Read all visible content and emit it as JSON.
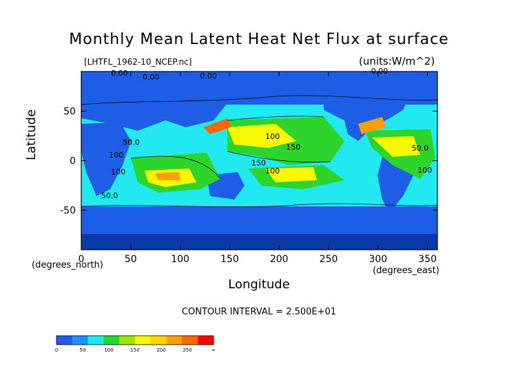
{
  "chart_data": {
    "type": "heatmap",
    "title": "Monthly Mean Latent Heat Net Flux at surface",
    "file_label": "[LHTFL_1962-10_NCEP.nc]",
    "units_label": "(units:W/m^2)",
    "xlabel": "Longitude",
    "ylabel": "Latitude",
    "x_units_label": "(degrees_east)",
    "y_units_label": "(degrees_north)",
    "xlim": [
      0,
      360
    ],
    "ylim": [
      -90,
      90
    ],
    "x_ticks": [
      0,
      50,
      100,
      150,
      200,
      250,
      300,
      350
    ],
    "y_ticks": [
      -50,
      0,
      50
    ],
    "contour_interval_text": "CONTOUR INTERVAL = 2.500E+01",
    "contour_labels": [
      {
        "text": "0.00",
        "x": 30,
        "y": 86
      },
      {
        "text": "0.00",
        "x": 62,
        "y": 82
      },
      {
        "text": "0.00",
        "x": 120,
        "y": 83
      },
      {
        "text": "0.00",
        "x": 293,
        "y": 88
      },
      {
        "text": "50.0",
        "x": 42,
        "y": 16
      },
      {
        "text": "100",
        "x": 186,
        "y": 22
      },
      {
        "text": "150",
        "x": 207,
        "y": 11
      },
      {
        "text": "100",
        "x": 28,
        "y": 3
      },
      {
        "text": "150",
        "x": 172,
        "y": -5
      },
      {
        "text": "100",
        "x": 186,
        "y": -13
      },
      {
        "text": "100",
        "x": 30,
        "y": -14
      },
      {
        "text": "50.0",
        "x": 20,
        "y": -38
      },
      {
        "text": "100",
        "x": 340,
        "y": -12
      },
      {
        "text": "50.0",
        "x": 334,
        "y": 10
      }
    ],
    "colorbar": {
      "ticks": [
        "0",
        "50",
        "100",
        "150",
        "200",
        "250",
        "∞"
      ],
      "colors": [
        "#1e5ee6",
        "#1e90ff",
        "#22e8f0",
        "#2cd42c",
        "#9be600",
        "#f8f800",
        "#ffd300",
        "#ff9f00",
        "#ff6600",
        "#ff0000"
      ]
    },
    "grid": false,
    "legend": "bottom-left colorbar"
  }
}
